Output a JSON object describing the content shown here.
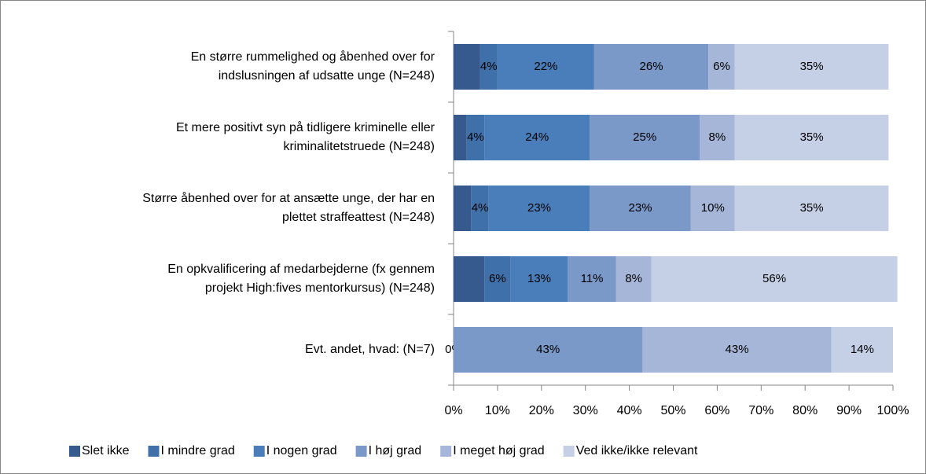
{
  "chart_data": {
    "type": "stacked-bar-horizontal",
    "categories": [
      [
        "En større rummelighed og åbenhed over for",
        "indslusningen af udsatte unge (N=248)"
      ],
      [
        "Et mere positivt syn på tidligere kriminelle eller",
        "kriminalitetstruede (N=248)"
      ],
      [
        "Større åbenhed over for at ansætte unge, der har en",
        "plettet straffeattest  (N=248)"
      ],
      [
        "En opkvalificering af medarbejderne (fx gennem",
        "projekt High:fives mentorkursus) (N=248)"
      ],
      [
        "Evt. andet, hvad: (N=7)"
      ]
    ],
    "series": [
      {
        "name": "Slet ikke",
        "color": "#375a8e",
        "values": [
          6,
          3,
          4,
          7,
          0
        ],
        "value_labels": [
          null,
          null,
          null,
          null,
          "0%"
        ]
      },
      {
        "name": "I mindre grad",
        "color": "#4070aa",
        "values": [
          4,
          4,
          4,
          6,
          null
        ],
        "value_labels": [
          "4%",
          "4%",
          "4%",
          "6%",
          null
        ]
      },
      {
        "name": "I nogen grad",
        "color": "#4a7ebb",
        "values": [
          22,
          24,
          23,
          13,
          null
        ],
        "value_labels": [
          "22%",
          "24%",
          "23%",
          "13%",
          null
        ]
      },
      {
        "name": "I høj grad",
        "color": "#7a98c8",
        "values": [
          26,
          25,
          23,
          11,
          43
        ],
        "value_labels": [
          "26%",
          "25%",
          "23%",
          "11%",
          "43%"
        ]
      },
      {
        "name": "I meget høj grad",
        "color": "#a6b6d9",
        "values": [
          6,
          8,
          10,
          8,
          43
        ],
        "value_labels": [
          "6%",
          "8%",
          "10%",
          "8%",
          "43%"
        ]
      },
      {
        "name": "Ved ikke/ikke relevant",
        "color": "#c5cfe6",
        "values": [
          35,
          35,
          35,
          56,
          14
        ],
        "value_labels": [
          "35%",
          "35%",
          "35%",
          "56%",
          "14%"
        ]
      }
    ],
    "xlim": [
      0,
      100
    ],
    "xticks": [
      {
        "value": 0,
        "label": "0%"
      },
      {
        "value": 10,
        "label": "10%"
      },
      {
        "value": 20,
        "label": "20%"
      },
      {
        "value": 30,
        "label": "30%"
      },
      {
        "value": 40,
        "label": "40%"
      },
      {
        "value": 50,
        "label": "50%"
      },
      {
        "value": 60,
        "label": "60%"
      },
      {
        "value": 70,
        "label": "70%"
      },
      {
        "value": 80,
        "label": "80%"
      },
      {
        "value": 90,
        "label": "90%"
      },
      {
        "value": 100,
        "label": "100%"
      }
    ],
    "legend": "bottom"
  }
}
